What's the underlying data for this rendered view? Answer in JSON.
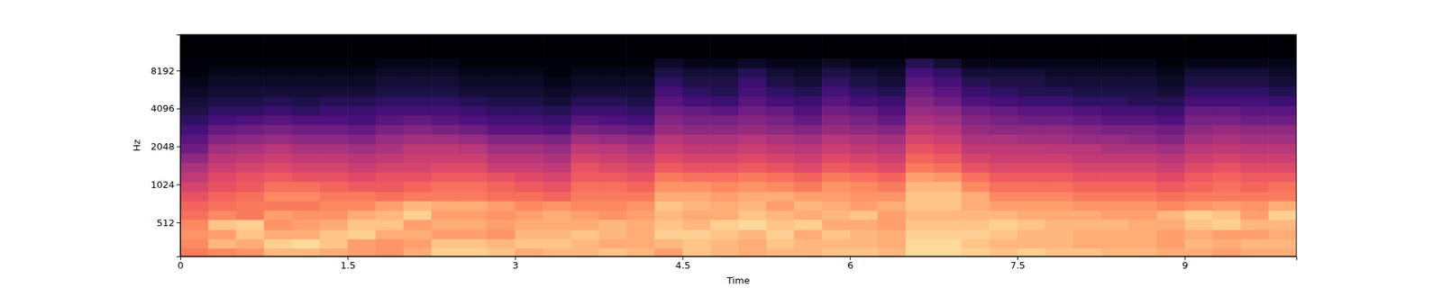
{
  "chart_data": {
    "type": "heatmap",
    "x_label": "Time",
    "y_label": "Hz",
    "log": "y",
    "color": "magma",
    "xlim": [
      0,
      10
    ],
    "ylim": [
      276,
      15770
    ],
    "xticks": [
      0,
      1.5,
      3,
      4.5,
      6,
      7.5,
      9
    ],
    "yticks": [
      512,
      1024,
      2048,
      4096,
      8192
    ],
    "zlim": [
      -80,
      0
    ],
    "x_edges": [
      0,
      0.25,
      0.5,
      0.75,
      1,
      1.25,
      1.5,
      1.75,
      2,
      2.25,
      2.5,
      2.75,
      3,
      3.25,
      3.5,
      3.75,
      4,
      4.25,
      4.5,
      4.75,
      5,
      5.25,
      5.5,
      5.75,
      6,
      6.25,
      6.5,
      6.75,
      7,
      7.25,
      7.5,
      7.75,
      8,
      8.25,
      8.5,
      8.75,
      9,
      9.25,
      9.5,
      9.75,
      10
    ],
    "y_edges": [
      276,
      320,
      380,
      450,
      540,
      640,
      760,
      900,
      1080,
      1280,
      1520,
      1810,
      2150,
      2560,
      3040,
      3620,
      4300,
      5120,
      6090,
      7240,
      8610,
      10240,
      15770
    ],
    "z": [
      [
        -22,
        -20,
        -18,
        -12,
        -12,
        -14,
        -16,
        -18,
        -14,
        -8,
        -8,
        -10,
        -14,
        -12,
        -12,
        -10,
        -12,
        -16,
        -10,
        -12,
        -14,
        -12,
        -12,
        -10,
        -10,
        -12,
        -6,
        -6,
        -8,
        -10,
        -8,
        -10,
        -10,
        -12,
        -12,
        -14,
        -14,
        -16,
        -14,
        -14
      ],
      [
        -20,
        -12,
        -14,
        -8,
        -6,
        -10,
        -16,
        -18,
        -16,
        -10,
        -10,
        -12,
        -10,
        -10,
        -12,
        -14,
        -14,
        -12,
        -10,
        -12,
        -14,
        -10,
        -12,
        -12,
        -12,
        -14,
        -6,
        -6,
        -10,
        -12,
        -12,
        -12,
        -14,
        -14,
        -14,
        -16,
        -12,
        -14,
        -12,
        -12
      ],
      [
        -18,
        -16,
        -10,
        -14,
        -14,
        -10,
        -8,
        -14,
        -14,
        -16,
        -16,
        -18,
        -12,
        -12,
        -10,
        -12,
        -14,
        -8,
        -8,
        -10,
        -12,
        -8,
        -14,
        -10,
        -12,
        -14,
        -8,
        -8,
        -8,
        -10,
        -12,
        -12,
        -14,
        -14,
        -14,
        -16,
        -14,
        -16,
        -16,
        -14
      ],
      [
        -20,
        -10,
        -8,
        -18,
        -16,
        -14,
        -10,
        -10,
        -16,
        -14,
        -14,
        -16,
        -14,
        -14,
        -14,
        -12,
        -14,
        -10,
        -12,
        -8,
        -6,
        -10,
        -8,
        -14,
        -14,
        -16,
        -10,
        -10,
        -10,
        -8,
        -10,
        -12,
        -12,
        -12,
        -14,
        -14,
        -10,
        -8,
        -12,
        -12
      ],
      [
        -24,
        -20,
        -22,
        -16,
        -18,
        -18,
        -14,
        -12,
        -8,
        -16,
        -16,
        -18,
        -16,
        -14,
        -16,
        -18,
        -16,
        -12,
        -14,
        -14,
        -10,
        -12,
        -14,
        -12,
        -10,
        -16,
        -12,
        -12,
        -12,
        -12,
        -14,
        -14,
        -14,
        -16,
        -16,
        -12,
        -8,
        -10,
        -16,
        -8
      ],
      [
        -26,
        -24,
        -22,
        -22,
        -22,
        -20,
        -20,
        -16,
        -12,
        -14,
        -14,
        -16,
        -20,
        -18,
        -20,
        -20,
        -18,
        -10,
        -12,
        -14,
        -12,
        -16,
        -12,
        -14,
        -16,
        -14,
        -10,
        -10,
        -14,
        -16,
        -16,
        -16,
        -18,
        -18,
        -18,
        -20,
        -18,
        -16,
        -18,
        -14
      ],
      [
        -30,
        -26,
        -24,
        -20,
        -20,
        -22,
        -22,
        -24,
        -22,
        -22,
        -22,
        -24,
        -24,
        -26,
        -22,
        -22,
        -22,
        -14,
        -14,
        -16,
        -14,
        -14,
        -16,
        -16,
        -18,
        -18,
        -10,
        -10,
        -14,
        -20,
        -20,
        -20,
        -22,
        -22,
        -22,
        -24,
        -22,
        -22,
        -22,
        -22
      ],
      [
        -34,
        -30,
        -28,
        -24,
        -24,
        -26,
        -28,
        -28,
        -26,
        -24,
        -24,
        -26,
        -28,
        -30,
        -24,
        -24,
        -26,
        -18,
        -18,
        -20,
        -18,
        -20,
        -22,
        -18,
        -20,
        -22,
        -12,
        -12,
        -20,
        -24,
        -24,
        -24,
        -26,
        -26,
        -26,
        -28,
        -26,
        -24,
        -26,
        -24
      ],
      [
        -38,
        -32,
        -30,
        -28,
        -30,
        -30,
        -32,
        -30,
        -30,
        -28,
        -28,
        -30,
        -32,
        -34,
        -28,
        -28,
        -30,
        -22,
        -24,
        -24,
        -22,
        -24,
        -26,
        -22,
        -24,
        -26,
        -16,
        -18,
        -24,
        -28,
        -28,
        -28,
        -30,
        -30,
        -30,
        -32,
        -28,
        -26,
        -28,
        -28
      ],
      [
        -42,
        -36,
        -34,
        -32,
        -34,
        -34,
        -36,
        -34,
        -34,
        -32,
        -32,
        -36,
        -36,
        -38,
        -30,
        -32,
        -34,
        -28,
        -30,
        -30,
        -28,
        -30,
        -32,
        -28,
        -30,
        -32,
        -22,
        -24,
        -30,
        -32,
        -32,
        -32,
        -34,
        -34,
        -34,
        -36,
        -32,
        -30,
        -32,
        -32
      ],
      [
        -48,
        -40,
        -38,
        -36,
        -38,
        -38,
        -40,
        -38,
        -36,
        -36,
        -36,
        -40,
        -40,
        -42,
        -34,
        -36,
        -38,
        -32,
        -34,
        -34,
        -32,
        -34,
        -36,
        -32,
        -34,
        -36,
        -26,
        -28,
        -34,
        -36,
        -36,
        -36,
        -38,
        -38,
        -38,
        -40,
        -36,
        -34,
        -36,
        -36
      ],
      [
        -54,
        -44,
        -42,
        -40,
        -42,
        -42,
        -44,
        -42,
        -38,
        -38,
        -40,
        -44,
        -44,
        -46,
        -38,
        -40,
        -42,
        -36,
        -38,
        -38,
        -36,
        -38,
        -40,
        -36,
        -38,
        -40,
        -30,
        -32,
        -38,
        -38,
        -38,
        -40,
        -40,
        -42,
        -42,
        -44,
        -40,
        -38,
        -40,
        -40
      ],
      [
        -58,
        -50,
        -48,
        -46,
        -48,
        -48,
        -50,
        -46,
        -44,
        -44,
        -46,
        -50,
        -50,
        -52,
        -44,
        -46,
        -48,
        -40,
        -42,
        -42,
        -40,
        -42,
        -44,
        -40,
        -42,
        -44,
        -34,
        -36,
        -42,
        -42,
        -44,
        -44,
        -46,
        -46,
        -48,
        -50,
        -44,
        -42,
        -44,
        -44
      ],
      [
        -62,
        -56,
        -54,
        -52,
        -54,
        -54,
        -56,
        -52,
        -50,
        -52,
        -54,
        -58,
        -58,
        -60,
        -52,
        -54,
        -56,
        -46,
        -48,
        -48,
        -46,
        -48,
        -50,
        -46,
        -48,
        -50,
        -38,
        -40,
        -46,
        -48,
        -48,
        -48,
        -50,
        -52,
        -52,
        -54,
        -48,
        -46,
        -48,
        -48
      ],
      [
        -66,
        -62,
        -60,
        -58,
        -60,
        -60,
        -62,
        -58,
        -56,
        -58,
        -60,
        -62,
        -62,
        -64,
        -58,
        -60,
        -62,
        -50,
        -52,
        -52,
        -50,
        -52,
        -56,
        -50,
        -52,
        -56,
        -42,
        -44,
        -50,
        -52,
        -54,
        -54,
        -56,
        -58,
        -58,
        -60,
        -52,
        -52,
        -54,
        -54
      ],
      [
        -70,
        -66,
        -66,
        -64,
        -66,
        -64,
        -64,
        -62,
        -62,
        -62,
        -64,
        -66,
        -66,
        -68,
        -64,
        -64,
        -66,
        -54,
        -56,
        -58,
        -54,
        -56,
        -60,
        -54,
        -56,
        -60,
        -46,
        -48,
        -54,
        -56,
        -58,
        -58,
        -60,
        -62,
        -62,
        -64,
        -56,
        -56,
        -58,
        -58
      ],
      [
        -72,
        -70,
        -70,
        -68,
        -70,
        -68,
        -68,
        -66,
        -66,
        -66,
        -68,
        -70,
        -70,
        -72,
        -68,
        -68,
        -70,
        -58,
        -62,
        -64,
        -58,
        -62,
        -64,
        -58,
        -62,
        -64,
        -50,
        -54,
        -60,
        -62,
        -64,
        -64,
        -66,
        -66,
        -68,
        -68,
        -62,
        -62,
        -62,
        -64
      ],
      [
        -74,
        -72,
        -72,
        -72,
        -72,
        -72,
        -72,
        -70,
        -70,
        -70,
        -72,
        -72,
        -72,
        -74,
        -72,
        -72,
        -72,
        -62,
        -66,
        -68,
        -62,
        -66,
        -68,
        -62,
        -66,
        -68,
        -54,
        -58,
        -64,
        -66,
        -68,
        -68,
        -70,
        -70,
        -70,
        -72,
        -66,
        -66,
        -66,
        -68
      ],
      [
        -76,
        -74,
        -74,
        -74,
        -74,
        -74,
        -74,
        -72,
        -72,
        -72,
        -74,
        -74,
        -74,
        -76,
        -74,
        -74,
        -74,
        -66,
        -70,
        -70,
        -64,
        -70,
        -72,
        -66,
        -70,
        -72,
        -58,
        -62,
        -68,
        -70,
        -70,
        -72,
        -72,
        -72,
        -72,
        -74,
        -70,
        -70,
        -70,
        -72
      ],
      [
        -78,
        -76,
        -76,
        -76,
        -76,
        -76,
        -76,
        -74,
        -74,
        -74,
        -76,
        -76,
        -76,
        -78,
        -76,
        -76,
        -76,
        -70,
        -72,
        -72,
        -68,
        -72,
        -74,
        -70,
        -72,
        -74,
        -62,
        -66,
        -72,
        -72,
        -72,
        -74,
        -74,
        -74,
        -74,
        -76,
        -72,
        -72,
        -72,
        -74
      ],
      [
        -78,
        -78,
        -78,
        -78,
        -78,
        -78,
        -78,
        -76,
        -76,
        -76,
        -78,
        -78,
        -78,
        -78,
        -78,
        -78,
        -78,
        -74,
        -76,
        -76,
        -74,
        -76,
        -76,
        -74,
        -76,
        -76,
        -68,
        -72,
        -76,
        -76,
        -76,
        -76,
        -76,
        -76,
        -76,
        -78,
        -76,
        -76,
        -76,
        -76
      ],
      [
        -80,
        -80,
        -80,
        -80,
        -80,
        -80,
        -80,
        -80,
        -80,
        -80,
        -80,
        -80,
        -80,
        -80,
        -80,
        -80,
        -80,
        -80,
        -80,
        -80,
        -80,
        -80,
        -80,
        -80,
        -80,
        -80,
        -80,
        -80,
        -80,
        -80,
        -80,
        -80,
        -80,
        -80,
        -80,
        -80,
        -80,
        -80,
        -80,
        -80
      ]
    ]
  }
}
